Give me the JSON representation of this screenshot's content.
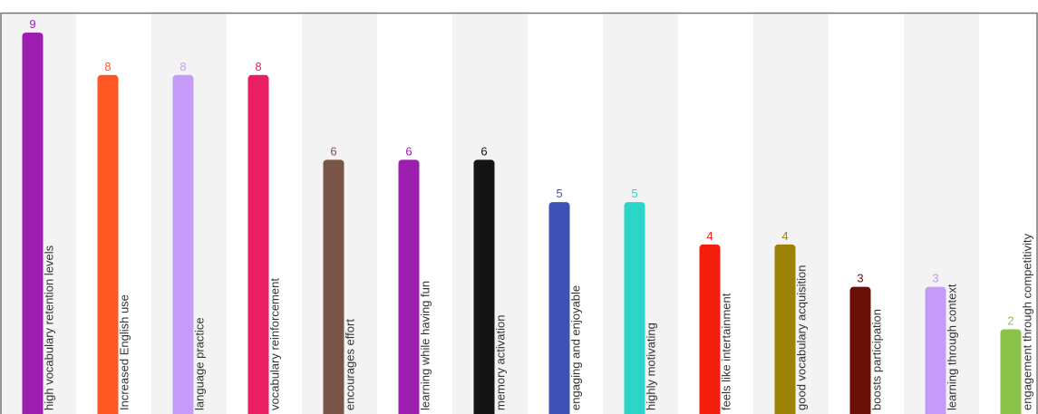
{
  "chart_data": {
    "type": "bar",
    "orientation": "vertical",
    "title": "",
    "xlabel": "",
    "ylabel": "",
    "ylim": [
      0,
      9
    ],
    "grid": false,
    "legend": "none",
    "value_labels": true,
    "category_labels_inside_bars": "rotated-vertical",
    "alternating_column_shading": true,
    "categories": [
      "high vocabulary retention levels",
      "Increased English use",
      "language practice",
      "vocabulary reinforcement",
      "encourages effort",
      "learning while having fun",
      "memory activation",
      "engaging and enjoyable",
      "highly motivating",
      "feels like intertainment",
      "good vocabulary acquisition",
      "boosts participation",
      "learning through context",
      "engagement through competitivity"
    ],
    "values": [
      9,
      8,
      8,
      8,
      6,
      6,
      6,
      5,
      5,
      4,
      4,
      3,
      3,
      2
    ],
    "colors": [
      "#9c1fb0",
      "#ff5722",
      "#c49cf7",
      "#e91e63",
      "#795548",
      "#9c1fb0",
      "#141414",
      "#3f51b5",
      "#2bd6c8",
      "#f41e0e",
      "#9b8308",
      "#6a0f08",
      "#c49cf7",
      "#8bc34a"
    ],
    "value_label_colors": [
      "#9c1fb0",
      "#ff5722",
      "#c49cf7",
      "#e91e63",
      "#795548",
      "#9c1fb0",
      "#141414",
      "#3f51b5",
      "#2bd6c8",
      "#f41e0e",
      "#9b8308",
      "#6a0f08",
      "#c49cf7",
      "#8bc34a"
    ],
    "band_color": "#f3f3f3",
    "frame_color": "#777777",
    "category_label_color": "#333333"
  }
}
